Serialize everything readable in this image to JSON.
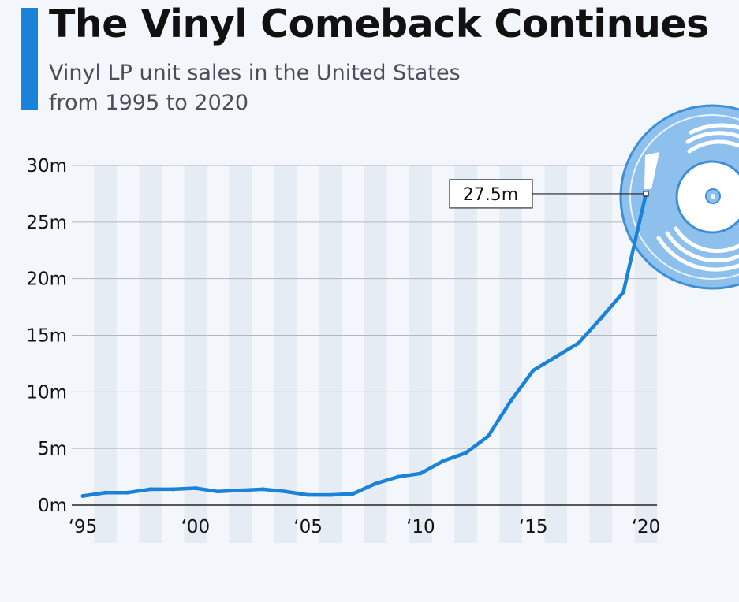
{
  "header": {
    "title": "The Vinyl Comeback Continues",
    "subtitle": "Vinyl LP unit sales in the United States from 1995 to 2020"
  },
  "colors": {
    "accent": "#1a82d9",
    "line": "#1a82d9",
    "band": "#e6ecf3",
    "grid": "#b3b7bd",
    "record": "#8ec0ed"
  },
  "chart_data": {
    "type": "line",
    "x": [
      1995,
      1996,
      1997,
      1998,
      1999,
      2000,
      2001,
      2002,
      2003,
      2004,
      2005,
      2006,
      2007,
      2008,
      2009,
      2010,
      2011,
      2012,
      2013,
      2014,
      2015,
      2016,
      2017,
      2018,
      2019,
      2020
    ],
    "series": [
      {
        "values": [
          0.8,
          1.1,
          1.1,
          1.4,
          1.4,
          1.5,
          1.2,
          1.3,
          1.4,
          1.2,
          0.9,
          0.9,
          1.0,
          1.9,
          2.5,
          2.8,
          3.9,
          4.6,
          6.1,
          9.2,
          11.9,
          13.1,
          14.3,
          16.5,
          18.8,
          27.5
        ]
      }
    ],
    "ylim": [
      0,
      30
    ],
    "yticks": [
      0,
      5,
      10,
      15,
      20,
      25,
      30
    ],
    "ytick_labels": [
      "0m",
      "5m",
      "10m",
      "15m",
      "20m",
      "25m",
      "30m"
    ],
    "xticks": [
      1995,
      2000,
      2005,
      2010,
      2015,
      2020
    ],
    "xtick_labels": [
      "‘95",
      "‘00",
      "‘05",
      "‘10",
      "‘15",
      "‘20"
    ],
    "xlabel": "",
    "ylabel": "",
    "grid": true,
    "annotation": {
      "x": 2020,
      "value": 27.5,
      "label": "27.5m"
    }
  }
}
